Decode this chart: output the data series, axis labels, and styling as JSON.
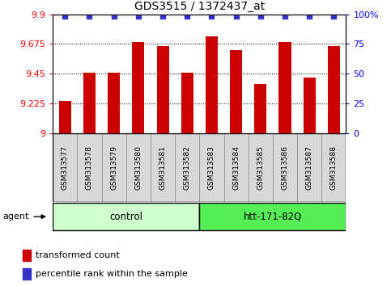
{
  "title": "GDS3515 / 1372437_at",
  "samples": [
    "GSM313577",
    "GSM313578",
    "GSM313579",
    "GSM313580",
    "GSM313581",
    "GSM313582",
    "GSM313583",
    "GSM313584",
    "GSM313585",
    "GSM313586",
    "GSM313587",
    "GSM313588"
  ],
  "bar_values": [
    9.24,
    9.46,
    9.46,
    9.69,
    9.66,
    9.46,
    9.73,
    9.63,
    9.37,
    9.69,
    9.42,
    9.66
  ],
  "bar_color": "#cc0000",
  "dot_color": "#3333cc",
  "ylim_left": [
    9.0,
    9.9
  ],
  "ylim_right": [
    0,
    100
  ],
  "yticks_left": [
    9.0,
    9.225,
    9.45,
    9.675,
    9.9
  ],
  "yticks_right": [
    0,
    25,
    50,
    75,
    100
  ],
  "ytick_labels_left": [
    "9",
    "9.225",
    "9.45",
    "9.675",
    "9.9"
  ],
  "ytick_labels_right": [
    "0",
    "25",
    "50",
    "75",
    "100%"
  ],
  "groups": [
    {
      "label": "control",
      "start": 0,
      "end": 5,
      "color": "#ccffcc"
    },
    {
      "label": "htt-171-82Q",
      "start": 6,
      "end": 11,
      "color": "#55ee55"
    }
  ],
  "legend_items": [
    {
      "color": "#cc0000",
      "label": "transformed count"
    },
    {
      "color": "#3333cc",
      "label": "percentile rank within the sample"
    }
  ],
  "bar_width": 0.5,
  "title_fontsize": 10,
  "tick_fontsize": 8,
  "sample_fontsize": 6.5,
  "group_fontsize": 8.5,
  "legend_fontsize": 8,
  "agent_fontsize": 8
}
